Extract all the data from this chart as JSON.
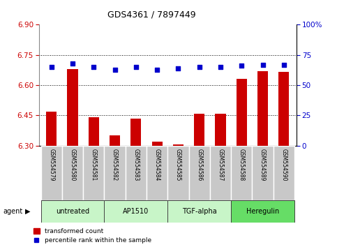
{
  "title": "GDS4361 / 7897449",
  "samples": [
    "GSM554579",
    "GSM554580",
    "GSM554581",
    "GSM554582",
    "GSM554583",
    "GSM554584",
    "GSM554585",
    "GSM554586",
    "GSM554587",
    "GSM554588",
    "GSM554589",
    "GSM554590"
  ],
  "red_values": [
    6.47,
    6.68,
    6.44,
    6.35,
    6.435,
    6.32,
    6.305,
    6.46,
    6.46,
    6.63,
    6.67,
    6.665
  ],
  "blue_values": [
    65,
    68,
    65,
    63,
    65,
    63,
    64,
    65,
    65,
    66,
    67,
    67
  ],
  "red_base": 6.3,
  "ylim_left": [
    6.3,
    6.9
  ],
  "ylim_right": [
    0,
    100
  ],
  "yticks_left": [
    6.3,
    6.45,
    6.6,
    6.75,
    6.9
  ],
  "yticks_right": [
    0,
    25,
    50,
    75,
    100
  ],
  "ytick_labels_right": [
    "0",
    "25",
    "50",
    "75",
    "100%"
  ],
  "agent_groups": [
    {
      "label": "untreated",
      "start": 0,
      "end": 3,
      "color": "#c8f5c8"
    },
    {
      "label": "AP1510",
      "start": 3,
      "end": 6,
      "color": "#c8f5c8"
    },
    {
      "label": "TGF-alpha",
      "start": 6,
      "end": 9,
      "color": "#c8f5c8"
    },
    {
      "label": "Heregulin",
      "start": 9,
      "end": 12,
      "color": "#66dd66"
    }
  ],
  "red_color": "#CC0000",
  "blue_color": "#0000CC",
  "bar_width": 0.5,
  "grid_color": "#000000",
  "tick_label_color_left": "#CC0000",
  "tick_label_color_right": "#0000CC",
  "legend_red": "transformed count",
  "legend_blue": "percentile rank within the sample",
  "sample_box_color": "#C8C8C8",
  "title_fontsize": 9
}
